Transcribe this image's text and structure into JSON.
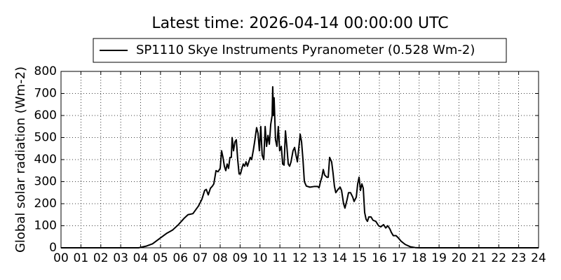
{
  "chart_data": {
    "type": "line",
    "title": "Latest time: 2026-04-14 00:00:00 UTC",
    "y_label": "Global solar radiation (Wm-2)",
    "x": [
      0,
      3.9,
      4.0,
      4.3,
      4.6,
      5.0,
      5.3,
      5.6,
      5.9,
      6.2,
      6.38,
      6.63,
      6.91,
      7.08,
      7.22,
      7.3,
      7.4,
      7.51,
      7.61,
      7.68,
      7.79,
      7.89,
      8.0,
      8.07,
      8.14,
      8.21,
      8.28,
      8.35,
      8.42,
      8.49,
      8.56,
      8.6,
      8.67,
      8.74,
      8.81,
      8.88,
      8.95,
      9.02,
      9.09,
      9.16,
      9.23,
      9.3,
      9.37,
      9.44,
      9.51,
      9.58,
      9.66,
      9.73,
      9.83,
      9.9,
      9.97,
      10.04,
      10.11,
      10.19,
      10.26,
      10.33,
      10.4,
      10.47,
      10.54,
      10.61,
      10.64,
      10.68,
      10.71,
      10.78,
      10.85,
      10.92,
      10.99,
      11.07,
      11.14,
      11.21,
      11.28,
      11.35,
      11.42,
      11.49,
      11.56,
      11.66,
      11.74,
      11.81,
      11.88,
      12.02,
      12.09,
      12.16,
      12.23,
      12.33,
      12.51,
      12.72,
      12.9,
      12.97,
      13.04,
      13.11,
      13.18,
      13.25,
      13.36,
      13.43,
      13.5,
      13.6,
      13.67,
      13.74,
      13.81,
      13.92,
      14.03,
      14.1,
      14.2,
      14.27,
      14.38,
      14.45,
      14.55,
      14.66,
      14.73,
      14.84,
      14.91,
      14.98,
      15.05,
      15.12,
      15.19,
      15.26,
      15.33,
      15.4,
      15.47,
      15.58,
      15.68,
      15.82,
      15.96,
      16.07,
      16.21,
      16.32,
      16.42,
      16.53,
      16.6,
      16.7,
      16.84,
      16.95,
      17.09,
      17.3,
      17.55,
      17.8,
      18.01,
      24
    ],
    "series": [
      {
        "name": "SP1110 Skye Instruments Pyranometer (0.528 Wm-2)",
        "color": "#000000",
        "values": [
          0,
          0,
          2,
          8,
          18,
          45,
          65,
          80,
          105,
          135,
          150,
          155,
          190,
          220,
          260,
          265,
          240,
          270,
          280,
          290,
          350,
          345,
          360,
          440,
          410,
          370,
          350,
          380,
          360,
          410,
          410,
          500,
          440,
          480,
          490,
          400,
          335,
          335,
          360,
          380,
          370,
          390,
          370,
          390,
          410,
          400,
          440,
          480,
          545,
          520,
          440,
          550,
          420,
          400,
          550,
          460,
          510,
          470,
          560,
          600,
          730,
          600,
          680,
          490,
          460,
          550,
          440,
          460,
          380,
          375,
          530,
          460,
          380,
          370,
          390,
          440,
          455,
          420,
          390,
          515,
          480,
          400,
          300,
          280,
          275,
          278,
          278,
          272,
          300,
          320,
          355,
          330,
          320,
          320,
          410,
          390,
          340,
          280,
          250,
          265,
          275,
          260,
          200,
          180,
          220,
          250,
          250,
          230,
          210,
          230,
          290,
          320,
          260,
          290,
          270,
          160,
          130,
          120,
          140,
          140,
          125,
          120,
          100,
          95,
          105,
          90,
          100,
          85,
          70,
          55,
          55,
          45,
          30,
          15,
          5,
          1,
          0,
          0
        ]
      }
    ],
    "xlim": [
      0,
      24
    ],
    "xticks": [
      {
        "value": 0,
        "label": "00"
      },
      {
        "value": 1,
        "label": "01"
      },
      {
        "value": 2,
        "label": "02"
      },
      {
        "value": 3,
        "label": "03"
      },
      {
        "value": 4,
        "label": "04"
      },
      {
        "value": 5,
        "label": "05"
      },
      {
        "value": 6,
        "label": "06"
      },
      {
        "value": 7,
        "label": "07"
      },
      {
        "value": 8,
        "label": "08"
      },
      {
        "value": 9,
        "label": "09"
      },
      {
        "value": 10,
        "label": "10"
      },
      {
        "value": 11,
        "label": "11"
      },
      {
        "value": 12,
        "label": "12"
      },
      {
        "value": 13,
        "label": "13"
      },
      {
        "value": 14,
        "label": "14"
      },
      {
        "value": 15,
        "label": "15"
      },
      {
        "value": 16,
        "label": "16"
      },
      {
        "value": 17,
        "label": "17"
      },
      {
        "value": 18,
        "label": "18"
      },
      {
        "value": 19,
        "label": "19"
      },
      {
        "value": 20,
        "label": "20"
      },
      {
        "value": 21,
        "label": "21"
      },
      {
        "value": 22,
        "label": "22"
      },
      {
        "value": 23,
        "label": "23"
      },
      {
        "value": 24,
        "label": "24"
      }
    ],
    "ylim": [
      0,
      800
    ],
    "yticks": [
      0,
      100,
      200,
      300,
      400,
      500,
      600,
      700,
      800
    ],
    "grid": true,
    "legend": "top"
  }
}
